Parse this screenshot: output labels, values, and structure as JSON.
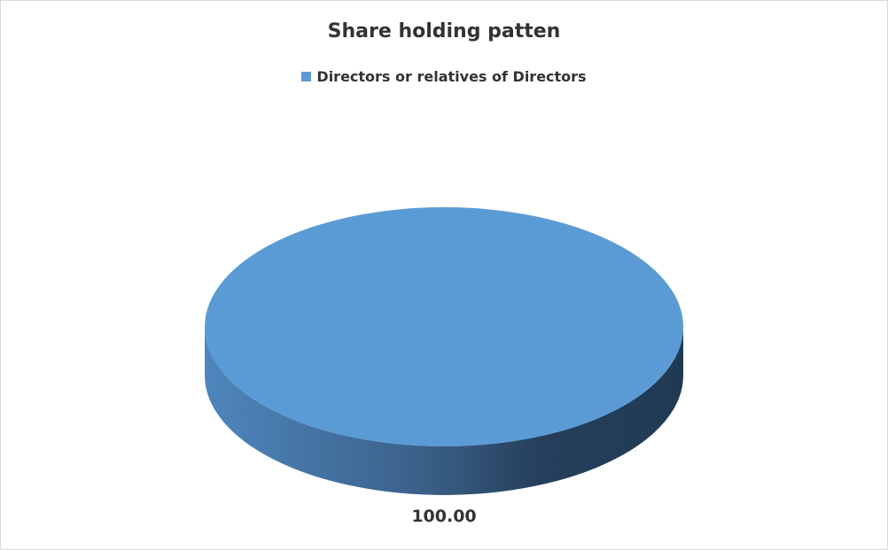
{
  "chart_data": {
    "type": "pie",
    "title": "Share holding patten",
    "legend_position": "top",
    "categories": [
      "Directors or relatives of Directors"
    ],
    "values": [
      100.0
    ],
    "data_labels": [
      "100.00"
    ],
    "colors": [
      "#5b9bd5"
    ],
    "style": "3d"
  }
}
